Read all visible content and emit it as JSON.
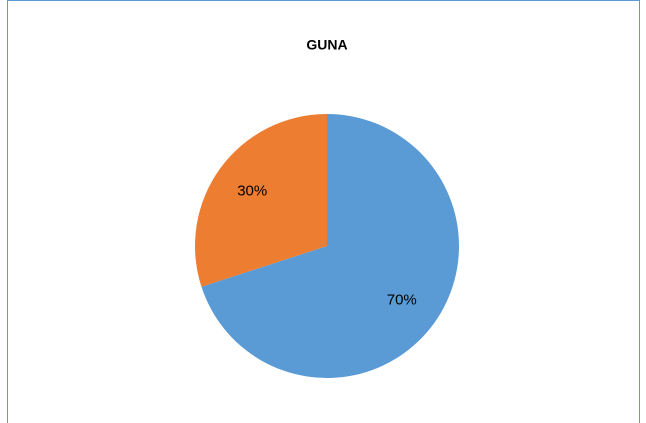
{
  "chart_data": {
    "type": "pie",
    "title": "GUNA",
    "values": [
      70,
      30
    ],
    "value_labels": [
      "70%",
      "30%"
    ],
    "colors": [
      "#5b9bd5",
      "#ed7d31"
    ]
  }
}
